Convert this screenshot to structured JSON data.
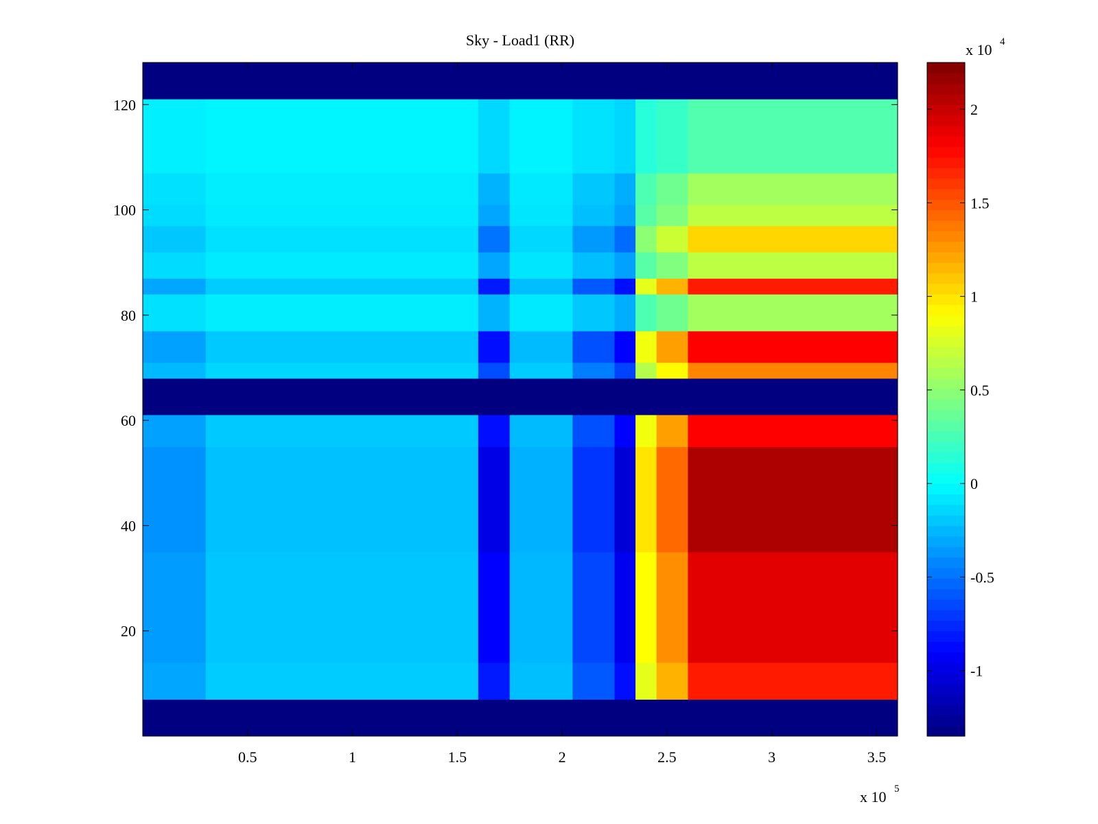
{
  "chart_data": {
    "type": "heatmap",
    "title": "Sky - Load1 (RR)",
    "xlabel": "",
    "ylabel": "",
    "x_exponent_label": "x 10",
    "x_exponent_power": "5",
    "colorbar_exponent_label": "x 10",
    "colorbar_exponent_power": "4",
    "xlim": [
      0,
      360000
    ],
    "ylim": [
      0,
      128
    ],
    "clim": [
      -13500,
      22500
    ],
    "colormap": "jet",
    "x_ticks": [
      {
        "value": 50000,
        "label": "0.5"
      },
      {
        "value": 100000,
        "label": "1"
      },
      {
        "value": 150000,
        "label": "1.5"
      },
      {
        "value": 200000,
        "label": "2"
      },
      {
        "value": 250000,
        "label": "2.5"
      },
      {
        "value": 300000,
        "label": "3"
      },
      {
        "value": 350000,
        "label": "3.5"
      }
    ],
    "y_ticks": [
      {
        "value": 20,
        "label": "20"
      },
      {
        "value": 40,
        "label": "40"
      },
      {
        "value": 60,
        "label": "60"
      },
      {
        "value": 80,
        "label": "80"
      },
      {
        "value": 100,
        "label": "100"
      },
      {
        "value": 120,
        "label": "120"
      }
    ],
    "colorbar_ticks": [
      {
        "value": -10000,
        "label": "-1"
      },
      {
        "value": -5000,
        "label": "-0.5"
      },
      {
        "value": 0,
        "label": "0"
      },
      {
        "value": 5000,
        "label": "0.5"
      },
      {
        "value": 10000,
        "label": "1"
      },
      {
        "value": 15000,
        "label": "1.5"
      },
      {
        "value": 20000,
        "label": "2"
      }
    ],
    "masked_channel_ranges": [
      [
        0,
        7
      ],
      [
        61,
        68
      ],
      [
        121,
        128
      ]
    ],
    "x_regions": [
      {
        "x": [
          0,
          30000
        ],
        "value": -3500
      },
      {
        "x": [
          30000,
          160000
        ],
        "value": -2000
      },
      {
        "x": [
          160000,
          175000
        ],
        "value": -9000
      },
      {
        "x": [
          175000,
          205000
        ],
        "value": -2500
      },
      {
        "x": [
          205000,
          225000
        ],
        "value": -6500
      },
      {
        "x": [
          225000,
          235000
        ],
        "value": -9500
      },
      {
        "x": [
          235000,
          245000
        ],
        "value": 9000
      },
      {
        "x": [
          245000,
          260000
        ],
        "value": 13000
      },
      {
        "x": [
          260000,
          360000
        ],
        "value": 19000
      }
    ],
    "channel_bands": [
      {
        "y": [
          7,
          14
        ],
        "level": 0.9
      },
      {
        "y": [
          14,
          35
        ],
        "level": 1.0
      },
      {
        "y": [
          35,
          55
        ],
        "level": 1.1
      },
      {
        "y": [
          55,
          61
        ],
        "level": 0.95
      },
      {
        "y": [
          68,
          71
        ],
        "level": 0.7
      },
      {
        "y": [
          71,
          77
        ],
        "level": 0.95
      },
      {
        "y": [
          77,
          84
        ],
        "level": 0.3
      },
      {
        "y": [
          84,
          87
        ],
        "level": 0.9
      },
      {
        "y": [
          87,
          92
        ],
        "level": 0.35
      },
      {
        "y": [
          92,
          97
        ],
        "level": 0.55
      },
      {
        "y": [
          97,
          101
        ],
        "level": 0.35
      },
      {
        "y": [
          101,
          107
        ],
        "level": 0.3
      },
      {
        "y": [
          107,
          121
        ],
        "level": 0.15
      }
    ]
  }
}
